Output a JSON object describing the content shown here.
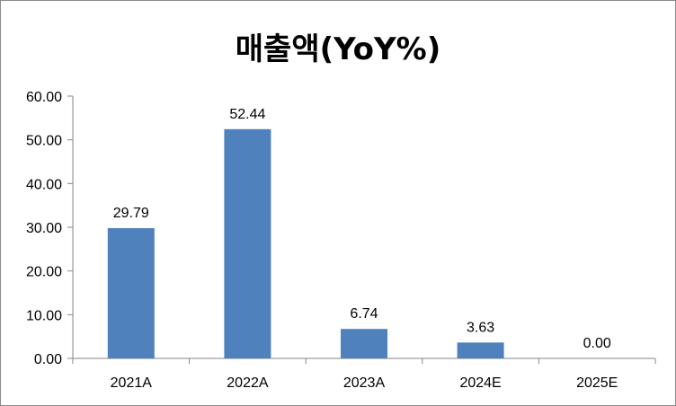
{
  "chart_data": {
    "type": "bar",
    "title": "매출액(YoY%)",
    "categories": [
      "2021A",
      "2022A",
      "2023A",
      "2024E",
      "2025E"
    ],
    "values": [
      29.79,
      52.44,
      6.74,
      3.63,
      0.0
    ],
    "data_labels": [
      "29.79",
      "52.44",
      "6.74",
      "3.63",
      "0.00"
    ],
    "y_ticks": [
      "0.00",
      "10.00",
      "20.00",
      "30.00",
      "40.00",
      "50.00",
      "60.00"
    ],
    "ylim": [
      0,
      60
    ],
    "grid": false,
    "legend": "none",
    "bar_color": "#4f81bd",
    "axis_color": "#868686"
  }
}
